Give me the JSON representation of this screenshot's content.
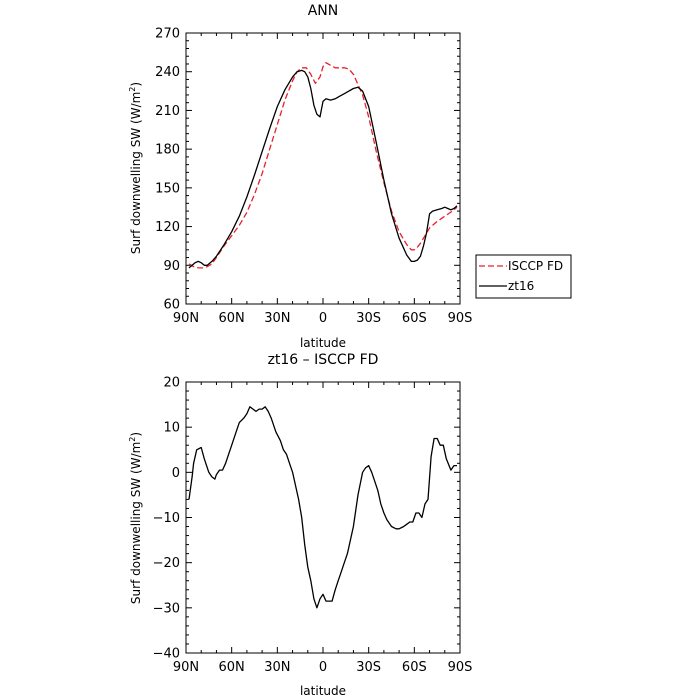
{
  "chart_data": [
    {
      "type": "line",
      "title": "ANN",
      "xlabel": "latitude",
      "ylabel_main": "Surf downwelling SW (W/m",
      "ylabel_sup": "2",
      "ylabel_close": ")",
      "xlim": [
        90,
        -90
      ],
      "ylim": [
        60,
        270
      ],
      "x_ticks": [
        90,
        60,
        30,
        0,
        -30,
        -60,
        -90
      ],
      "x_tick_labels": [
        "90N",
        "60N",
        "30N",
        "0",
        "30S",
        "60S",
        "90S"
      ],
      "y_ticks": [
        60,
        90,
        120,
        150,
        180,
        210,
        240,
        270
      ],
      "y_tick_labels": [
        "60",
        "90",
        "120",
        "150",
        "180",
        "210",
        "240",
        "270"
      ],
      "legend_position": "outside-right",
      "series": [
        {
          "name": "ISCCP FD",
          "color": "#e8202a",
          "dash": "dashed",
          "x": [
            88,
            85,
            82,
            79,
            76,
            73,
            70,
            65,
            60,
            55,
            50,
            45,
            40,
            35,
            30,
            25,
            20,
            17,
            14,
            11,
            8,
            5,
            2,
            0,
            -2,
            -5,
            -8,
            -11,
            -14,
            -17,
            -20,
            -23,
            -26,
            -30,
            -35,
            -40,
            -45,
            -50,
            -55,
            -58,
            -60,
            -62,
            -64,
            -66,
            -70,
            -75,
            -80,
            -85,
            -88
          ],
          "y": [
            91,
            89,
            88,
            88,
            89,
            91,
            96,
            105,
            113,
            121,
            131,
            145,
            161,
            180,
            199,
            218,
            233,
            240,
            243,
            243,
            238,
            231,
            236,
            244,
            247,
            245,
            243,
            243,
            243,
            242,
            238,
            230,
            222,
            205,
            178,
            154,
            132,
            116,
            106,
            102,
            102,
            104,
            107,
            111,
            119,
            124,
            128,
            132,
            135
          ]
        },
        {
          "name": "zt16",
          "color": "#000000",
          "dash": "solid",
          "x": [
            88,
            86,
            84,
            82,
            80,
            78,
            76,
            73,
            70,
            65,
            60,
            55,
            50,
            45,
            40,
            35,
            30,
            25,
            20,
            17,
            14,
            12,
            10,
            8,
            6,
            4,
            2,
            0,
            -2,
            -5,
            -8,
            -11,
            -14,
            -17,
            -20,
            -23,
            -26,
            -30,
            -35,
            -40,
            -45,
            -50,
            -55,
            -58,
            -60,
            -62,
            -64,
            -66,
            -68,
            -70,
            -72,
            -75,
            -78,
            -80,
            -82,
            -84,
            -86,
            -88
          ],
          "y": [
            88,
            90,
            92,
            93,
            92,
            90,
            90,
            93,
            97,
            106,
            116,
            128,
            143,
            160,
            178,
            196,
            213,
            226,
            236,
            240,
            241,
            240,
            236,
            227,
            214,
            207,
            205,
            217,
            219,
            218,
            219,
            221,
            223,
            225,
            227,
            228,
            225,
            213,
            185,
            156,
            130,
            111,
            98,
            93,
            93,
            94,
            97,
            105,
            115,
            130,
            132,
            133,
            134,
            135,
            134,
            133,
            134,
            136
          ]
        }
      ]
    },
    {
      "type": "line",
      "title": "zt16 – ISCCP FD",
      "xlabel": "latitude",
      "ylabel_main": "Surf downwelling SW (W/m",
      "ylabel_sup": "2",
      "ylabel_close": ")",
      "xlim": [
        90,
        -90
      ],
      "ylim": [
        -40,
        20
      ],
      "x_ticks": [
        90,
        60,
        30,
        0,
        -30,
        -60,
        -90
      ],
      "x_tick_labels": [
        "90N",
        "60N",
        "30N",
        "0",
        "30S",
        "60S",
        "90S"
      ],
      "y_ticks": [
        -40,
        -30,
        -20,
        -10,
        0,
        10,
        20
      ],
      "y_tick_labels": [
        "−40",
        "−30",
        "−20",
        "−10",
        "0",
        "10",
        "20"
      ],
      "series": [
        {
          "color": "#000000",
          "dash": "solid",
          "x": [
            88,
            86,
            85,
            83,
            80,
            78,
            75,
            73,
            71,
            70,
            68,
            66,
            64,
            62,
            60,
            58,
            55,
            52,
            50,
            48,
            46,
            44,
            42,
            40,
            38,
            36,
            34,
            31,
            28,
            26,
            24,
            22,
            20,
            18,
            16,
            14,
            12,
            10,
            8,
            6,
            4,
            2,
            0,
            -2,
            -4,
            -6,
            -8,
            -10,
            -12,
            -14,
            -16,
            -18,
            -20,
            -23,
            -26,
            -28,
            -30,
            -32,
            -34,
            -36,
            -38,
            -40,
            -42,
            -45,
            -48,
            -50,
            -53,
            -55,
            -57,
            -59,
            -61,
            -63,
            -65,
            -67,
            -69,
            -71,
            -73,
            -75,
            -77,
            -79,
            -81,
            -84,
            -86,
            -88
          ],
          "y": [
            -6,
            -1,
            2,
            5,
            5.5,
            3,
            0,
            -1,
            -1.5,
            -0.5,
            0.5,
            0.5,
            2,
            4,
            6,
            8,
            11,
            12,
            13,
            14.5,
            14,
            13.5,
            14,
            14,
            14.5,
            13.5,
            12,
            9,
            7,
            5,
            4,
            2,
            0,
            -3,
            -6,
            -10,
            -16,
            -21,
            -24,
            -28,
            -30,
            -28,
            -27,
            -28.5,
            -28.5,
            -28.5,
            -26,
            -24,
            -22,
            -20,
            -18,
            -15,
            -12,
            -5,
            0,
            1,
            1.5,
            0,
            -2,
            -4,
            -7,
            -9,
            -10.5,
            -12,
            -12.5,
            -12.5,
            -12,
            -11.5,
            -11,
            -11,
            -9,
            -9,
            -10,
            -7,
            -6,
            3.5,
            7.5,
            7.5,
            6,
            6,
            3,
            0.5,
            1.5,
            1.5
          ]
        }
      ]
    }
  ]
}
